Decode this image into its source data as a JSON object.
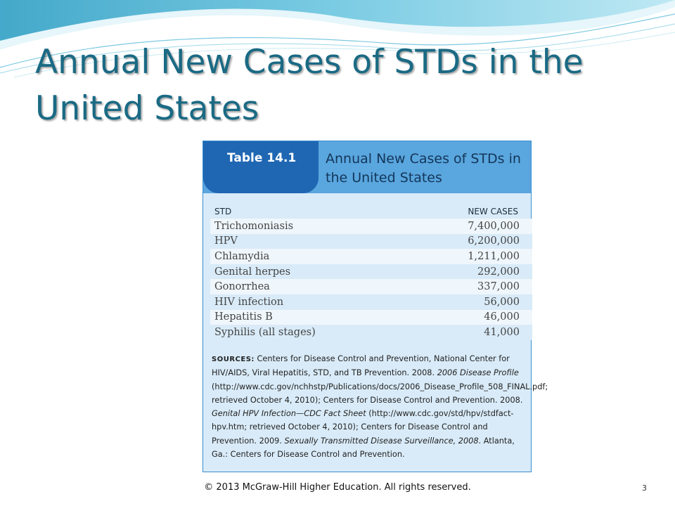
{
  "slide": {
    "title": "Annual New Cases of STDs in the United States",
    "footer": "© 2013 McGraw-Hill Higher Education.  All rights reserved.",
    "page_number": "3"
  },
  "table": {
    "number": "Table 14.1",
    "caption": "Annual New Cases of STDs in the United States",
    "columns": [
      "STD",
      "NEW CASES"
    ],
    "rows": [
      {
        "std": "Trichomoniasis",
        "cases": "7,400,000"
      },
      {
        "std": "HPV",
        "cases": "6,200,000"
      },
      {
        "std": "Chlamydia",
        "cases": "1,211,000"
      },
      {
        "std": "Genital herpes",
        "cases": "292,000"
      },
      {
        "std": "Gonorrhea",
        "cases": "337,000"
      },
      {
        "std": "HIV infection",
        "cases": "56,000"
      },
      {
        "std": "Hepatitis B",
        "cases": "46,000"
      },
      {
        "std": "Syphilis (all stages)",
        "cases": "41,000"
      }
    ],
    "sources": {
      "label": "SOURCES:",
      "part1": "Centers for Disease Control and Prevention, National Center for HIV/AIDS, Viral Hepatitis, STD, and TB Prevention. 2008.",
      "italic1": "2006 Disease Profile",
      "part2": "(http://www.cdc.gov/nchhstp/Publications/docs/2006_Disease_Profile_508_FINAL.pdf; retrieved October 4, 2010); Centers for Disease Control and Prevention. 2008.",
      "italic2": "Genital HPV Infection—CDC Fact Sheet",
      "part3": "(http://www.cdc.gov/std/hpv/stdfact-hpv.htm; retrieved October 4, 2010); Centers for Disease Control and Prevention. 2009.",
      "italic3": "Sexually Transmitted Disease Surveillance, 2008",
      "part4": ". Atlanta, Ga.: Centers for Disease Control and Prevention."
    }
  },
  "colors": {
    "title": "#1a6a84",
    "tab": "#1f67b3",
    "header_band": "#5aa6de",
    "table_bg": "#d9ebf8"
  }
}
